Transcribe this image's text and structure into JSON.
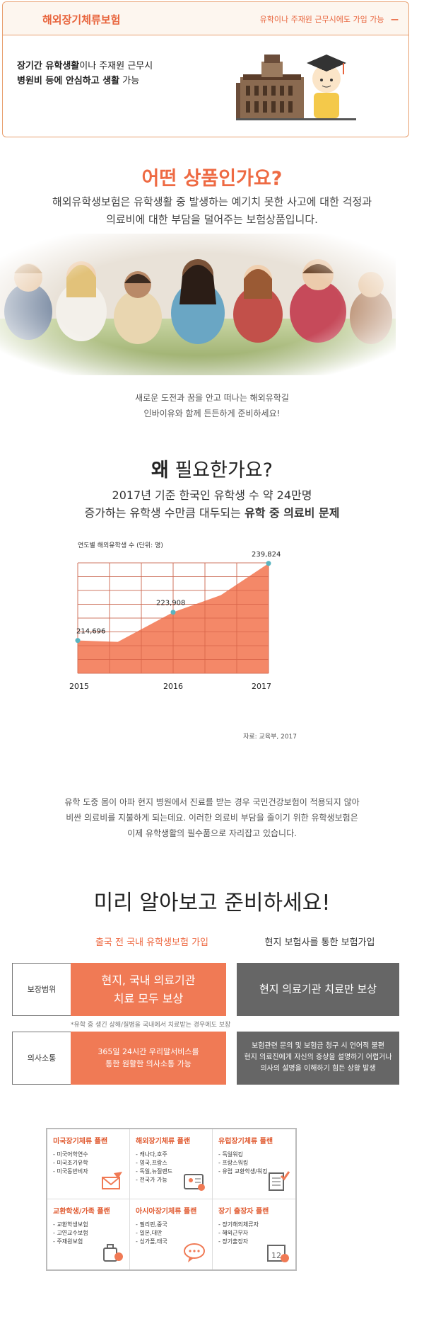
{
  "top_card": {
    "title": "해외장기체류보험",
    "subtitle": "유학이나 주재원 근무시에도 가입 가능",
    "collapse_icon": "minus-icon",
    "desc_line1_bold": "장기간 유학생활",
    "desc_line1_rest": "이나 주재원 근무시",
    "desc_line2_bold": "병원비 등에 안심하고 생활",
    "desc_line2_rest": " 가능"
  },
  "section_product": {
    "title": "어떤 상품인가요?",
    "desc_line1": "해외유학생보험은 유학생활 중 발생하는 예기치 못한 사고에 대한 걱정과",
    "desc_line2": "의료비에 대한 부담을 덜어주는 보험상품입니다.",
    "caption_line1": "새로운 도전과 꿈을 안고 떠나는 해외유학길",
    "caption_line2": "인바이유와 함께 든든하게 준비하세요!"
  },
  "section_why": {
    "title_bold": "왜",
    "title_rest": " 필요한가요?",
    "desc_line1": "2017년 기준 한국인 유학생 수 약 24만명",
    "desc_line2_rest": "증가하는 유학생 수만큼 대두되는 ",
    "desc_line2_bold": "유학 중 의료비 문제"
  },
  "chart_data": {
    "type": "area",
    "title": "연도별 해외유학생 수 (단위: 명)",
    "x": [
      "2015",
      "2016",
      "2017"
    ],
    "values": [
      214696,
      223908,
      239824
    ],
    "value_labels": [
      "214,696",
      "223,908",
      "239,824"
    ],
    "source": "자료: 교육부, 2017",
    "grid": true,
    "fill_color": "#f37b58",
    "point_color": "#5ab4c0"
  },
  "section_info": {
    "line1": "유학 도중 몸이 아파 현지 병원에서 진료를 받는 경우 국민건강보험이 적용되지 않아",
    "line2": "비싼 의료비를 지불하게 되는데요. 이러한 의료비 부담을 줄이기 위한 유학생보험은",
    "line3": "이제 유학생활의 필수품으로 자리잡고 있습니다."
  },
  "section_compare": {
    "title": "미리 알아보고 준비하세요!",
    "col_left": "출국 전 국내 유학생보험 가입",
    "col_right": "현지 보험사를 통한 보험가입",
    "row1_label": "보장범위",
    "row1_left_line1": "현지, 국내 의료기관",
    "row1_left_line2": "치료 모두 보상",
    "row1_right": "현지 의료기관 치료만 보상",
    "note": "*유학 중 생긴 상해/질병을 국내에서 치료받는 경우에도 보장",
    "row2_label": "의사소통",
    "row2_left_line1": "365일 24시간 우리말서비스를",
    "row2_left_line2": "통한 원활한 의사소통 가능",
    "row2_right_line1": "보험관련 문의 및 보험금 청구 시 언어적 불편",
    "row2_right_line2": "현지 의료진에게 자신의 증상을 설명하기 어렵거나",
    "row2_right_line3": "의사의 설명을 이해하기 힘든 상황 발생"
  },
  "plans": [
    {
      "title": "미국장기체류 플랜",
      "items": [
        "미국어학연수",
        "미국조기유학",
        "미국동반비자"
      ],
      "icon": "envelope-plane-icon"
    },
    {
      "title": "해외장기체류 플랜",
      "items": [
        "캐나다,호주",
        "영국,프랑스",
        "독일,뉴질랜드",
        "전국가 가능"
      ],
      "icon": "id-card-icon"
    },
    {
      "title": "유럽장기체류 플랜",
      "items": [
        "독일워킹",
        "프랑스워킹",
        "유럽 교환학생/워킹"
      ],
      "icon": "checklist-icon"
    },
    {
      "title": "교환학생/가족 플랜",
      "items": [
        "교환학생보험",
        "고연교수보험",
        "주재원보험"
      ],
      "icon": "luggage-icon"
    },
    {
      "title": "아시아장기체류 플랜",
      "items": [
        "필리핀,중국",
        "일본,대만",
        "싱가폴,태국"
      ],
      "icon": "chat-bubble-icon"
    },
    {
      "title": "장기 출장자 플랜",
      "items": [
        "장기해외체류자",
        "해외근무자",
        "장기출장자"
      ],
      "icon": "calendar-icon"
    }
  ]
}
